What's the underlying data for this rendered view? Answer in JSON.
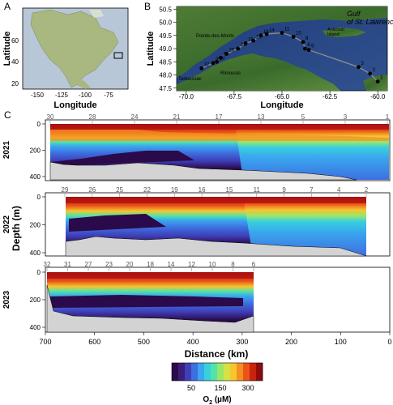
{
  "panel_labels": {
    "a": "A",
    "b": "B",
    "c": "C"
  },
  "panel_a": {
    "xlabel": "Longitude",
    "ylabel": "Latitude",
    "xticks": [
      "-150",
      "-125",
      "-100",
      "-75"
    ],
    "yticks": [
      "60",
      "40",
      "20"
    ]
  },
  "panel_b": {
    "xlabel": "Longitude",
    "ylabel": "Latitude",
    "xticks": [
      "-70.0",
      "-67.5",
      "-65.0",
      "-62.5",
      "-60.0"
    ],
    "yticks": [
      "50.5",
      "50.0",
      "49.5",
      "49.0",
      "48.5",
      "48.0",
      "47.5"
    ],
    "place_labels": {
      "pointe": "Pointe-des-Monts",
      "rimouski": "Rimouski",
      "tadoussac": "Tadoussac",
      "anticosti": "Anticosti\nIsland",
      "gulf": "Gulf\nof St. Lawrence"
    },
    "stations": [
      {
        "label": "1",
        "lon": -60.0,
        "lat": 47.75
      },
      {
        "label": "2",
        "lon": -60.4,
        "lat": 48.05
      },
      {
        "label": "3",
        "lon": -61.0,
        "lat": 48.3
      },
      {
        "label": "5",
        "lon": -63.6,
        "lat": 48.95
      },
      {
        "label": "6",
        "lon": -63.8,
        "lat": 49.0
      },
      {
        "label": "8",
        "lon": -63.9,
        "lat": 49.25
      },
      {
        "label": "10",
        "lon": -64.4,
        "lat": 49.45
      },
      {
        "label": "11",
        "lon": -65.0,
        "lat": 49.6
      },
      {
        "label": "14",
        "lon": -65.8,
        "lat": 49.55
      },
      {
        "label": "16",
        "lon": -66.1,
        "lat": 49.5
      },
      {
        "label": "18",
        "lon": -66.5,
        "lat": 49.3
      },
      {
        "label": "19",
        "lon": -66.9,
        "lat": 49.2
      },
      {
        "label": "22",
        "lon": -67.3,
        "lat": 49.0
      },
      {
        "label": "25",
        "lon": -67.9,
        "lat": 48.8
      },
      {
        "label": "26",
        "lon": -68.2,
        "lat": 48.65
      },
      {
        "label": "29",
        "lon": -68.4,
        "lat": 48.5
      },
      {
        "label": "30",
        "lon": -68.6,
        "lat": 48.45
      },
      {
        "label": "32",
        "lon": -69.2,
        "lat": 48.25
      }
    ]
  },
  "panel_c": {
    "xlabel": "Distance (km)",
    "ylabel": "Depth (m)",
    "years": [
      "2021",
      "2022",
      "2023"
    ],
    "xticks": [
      "700",
      "600",
      "500",
      "400",
      "300",
      "200",
      "100",
      "0"
    ],
    "yticks": [
      "0",
      "200",
      "400"
    ],
    "stations_2021": [
      "30",
      "28",
      "24",
      "21",
      "17",
      "13",
      "5",
      "3",
      "1"
    ],
    "stations_2022": [
      "29",
      "26",
      "25",
      "22",
      "19",
      "16",
      "15",
      "11",
      "9",
      "7",
      "4",
      "2"
    ],
    "stations_2023": [
      "32",
      "31",
      "27",
      "23",
      "20",
      "18",
      "14",
      "12",
      "10",
      "8",
      "6"
    ]
  },
  "colorbar": {
    "label_main": "O",
    "label_sub": "2",
    "label_unit": " (µM)",
    "ticks": [
      "50",
      "150",
      "300"
    ],
    "colors": [
      "#2a0a4a",
      "#3b1e7a",
      "#3f3fb8",
      "#3d6fe0",
      "#3aa6ef",
      "#37d0dd",
      "#52e3a8",
      "#9ae66a",
      "#d6e146",
      "#f7c52e",
      "#f58f20",
      "#ea5319",
      "#c8230f",
      "#8d0b0b"
    ]
  },
  "chart_data": {
    "type": "heatmap",
    "title": "",
    "xlabel": "Distance (km)",
    "ylabel": "Depth (m)",
    "xlim": [
      700,
      0
    ],
    "ylim": [
      450,
      0
    ],
    "panels": [
      {
        "year": "2021",
        "x_extent_km": [
          700,
          0
        ]
      },
      {
        "year": "2022",
        "x_extent_km": [
          655,
          50
        ]
      },
      {
        "year": "2023",
        "x_extent_km": [
          700,
          280
        ]
      }
    ],
    "colorbar": {
      "label": "O2 (µM)",
      "ticks": [
        50,
        150,
        300
      ]
    }
  }
}
